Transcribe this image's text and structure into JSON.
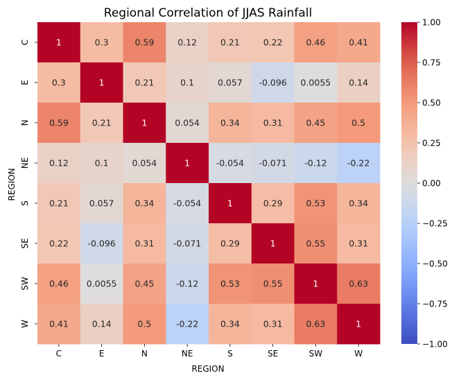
{
  "chart_data": {
    "type": "heatmap",
    "title": "Regional Correlation of JJAS Rainfall",
    "xlabel": "REGION",
    "ylabel": "REGION",
    "x_categories": [
      "C",
      "E",
      "N",
      "NE",
      "S",
      "SE",
      "SW",
      "W"
    ],
    "y_categories": [
      "C",
      "E",
      "N",
      "NE",
      "S",
      "SE",
      "SW",
      "W"
    ],
    "values": [
      [
        1,
        0.3,
        0.59,
        0.12,
        0.21,
        0.22,
        0.46,
        0.41
      ],
      [
        0.3,
        1,
        0.21,
        0.1,
        0.057,
        -0.096,
        0.0055,
        0.14
      ],
      [
        0.59,
        0.21,
        1,
        0.054,
        0.34,
        0.31,
        0.45,
        0.5
      ],
      [
        0.12,
        0.1,
        0.054,
        1,
        -0.054,
        -0.071,
        -0.12,
        -0.22
      ],
      [
        0.21,
        0.057,
        0.34,
        -0.054,
        1,
        0.29,
        0.53,
        0.34
      ],
      [
        0.22,
        -0.096,
        0.31,
        -0.071,
        0.29,
        1,
        0.55,
        0.31
      ],
      [
        0.46,
        0.0055,
        0.45,
        -0.12,
        0.53,
        0.55,
        1,
        0.63
      ],
      [
        0.41,
        0.14,
        0.5,
        -0.22,
        0.34,
        0.31,
        0.63,
        1
      ]
    ],
    "value_labels": [
      [
        "1",
        "0.3",
        "0.59",
        "0.12",
        "0.21",
        "0.22",
        "0.46",
        "0.41"
      ],
      [
        "0.3",
        "1",
        "0.21",
        "0.1",
        "0.057",
        "-0.096",
        "0.0055",
        "0.14"
      ],
      [
        "0.59",
        "0.21",
        "1",
        "0.054",
        "0.34",
        "0.31",
        "0.45",
        "0.5"
      ],
      [
        "0.12",
        "0.1",
        "0.054",
        "1",
        "-0.054",
        "-0.071",
        "-0.12",
        "-0.22"
      ],
      [
        "0.21",
        "0.057",
        "0.34",
        "-0.054",
        "1",
        "0.29",
        "0.53",
        "0.34"
      ],
      [
        "0.22",
        "-0.096",
        "0.31",
        "-0.071",
        "0.29",
        "1",
        "0.55",
        "0.31"
      ],
      [
        "0.46",
        "0.0055",
        "0.45",
        "-0.12",
        "0.53",
        "0.55",
        "1",
        "0.63"
      ],
      [
        "0.41",
        "0.14",
        "0.5",
        "-0.22",
        "0.34",
        "0.31",
        "0.63",
        "1"
      ]
    ],
    "colormap": "coolwarm",
    "vmin": -1,
    "vmax": 1,
    "colorbar_ticks": [
      1.0,
      0.75,
      0.5,
      0.25,
      0.0,
      -0.25,
      -0.5,
      -0.75,
      -1.0
    ],
    "colorbar_tick_labels": [
      "1.00",
      "0.75",
      "0.50",
      "0.25",
      "0.00",
      "−0.25",
      "−0.50",
      "−0.75",
      "−1.00"
    ],
    "grid": false,
    "colorbar_position": "right"
  }
}
